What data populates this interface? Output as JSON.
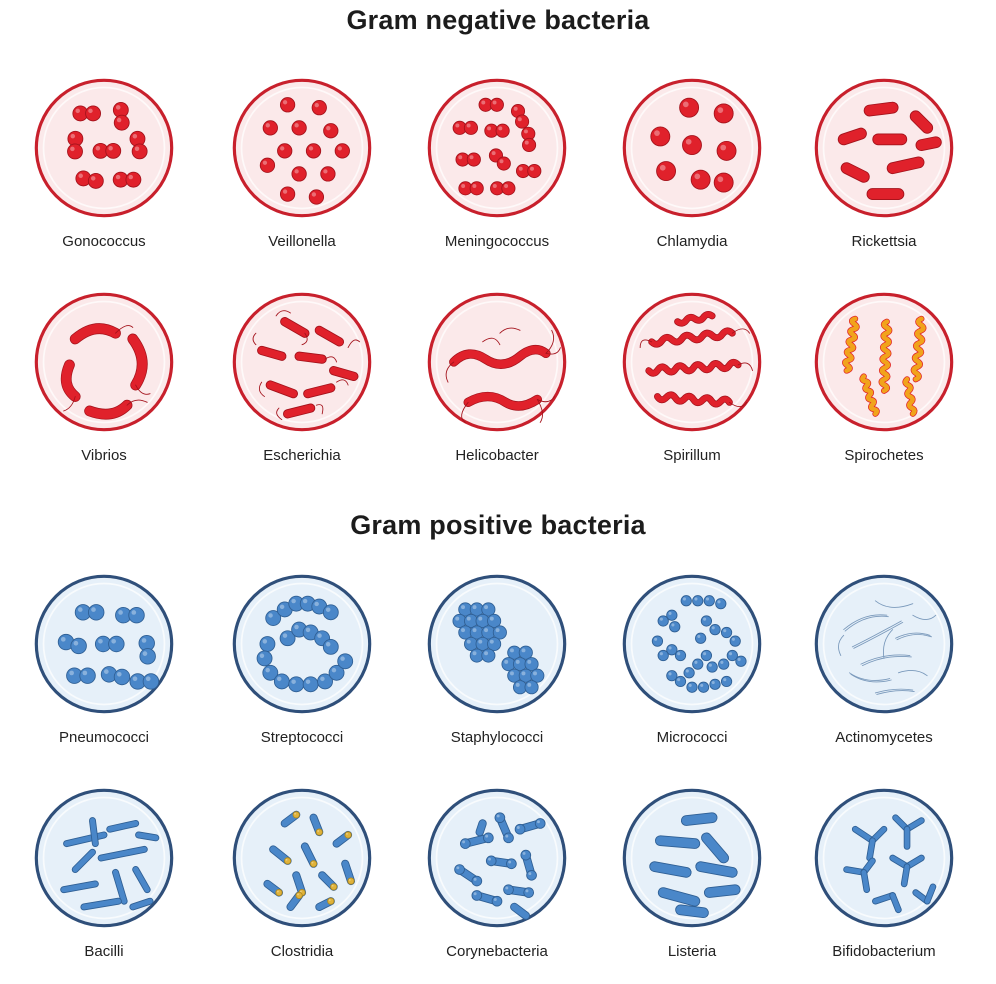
{
  "gram_negative": {
    "title": "Gram negative bacteria",
    "fill": "#fbe9ea",
    "stroke": "#c8202c",
    "cell_color": "#e0212b",
    "items": [
      {
        "label": "Gonococcus",
        "icon": "gonococcus-icon"
      },
      {
        "label": "Veillonella",
        "icon": "veillonella-icon"
      },
      {
        "label": "Meningococcus",
        "icon": "meningococcus-icon"
      },
      {
        "label": "Chlamydia",
        "icon": "chlamydia-icon"
      },
      {
        "label": "Rickettsia",
        "icon": "rickettsia-icon"
      },
      {
        "label": "Vibrios",
        "icon": "vibrios-icon"
      },
      {
        "label": "Escherichia",
        "icon": "escherichia-icon"
      },
      {
        "label": "Helicobacter",
        "icon": "helicobacter-icon"
      },
      {
        "label": "Spirillum",
        "icon": "spirillum-icon"
      },
      {
        "label": "Spirochetes",
        "icon": "spirochetes-icon"
      }
    ]
  },
  "gram_positive": {
    "title": "Gram positive bacteria",
    "fill": "#e6f0f9",
    "stroke": "#2f4f7a",
    "cell_color": "#4a87c9",
    "items": [
      {
        "label": "Pneumococci",
        "icon": "pneumococci-icon"
      },
      {
        "label": "Streptococci",
        "icon": "streptococci-icon"
      },
      {
        "label": "Staphylococci",
        "icon": "staphylococci-icon"
      },
      {
        "label": "Micrococci",
        "icon": "micrococci-icon"
      },
      {
        "label": "Actinomycetes",
        "icon": "actinomycetes-icon"
      },
      {
        "label": "Bacilli",
        "icon": "bacilli-icon"
      },
      {
        "label": "Clostridia",
        "icon": "clostridia-icon"
      },
      {
        "label": "Corynebacteria",
        "icon": "corynebacteria-icon"
      },
      {
        "label": "Listeria",
        "icon": "listeria-icon"
      },
      {
        "label": "Bifidobacterium",
        "icon": "bifidobacterium-icon"
      }
    ]
  }
}
